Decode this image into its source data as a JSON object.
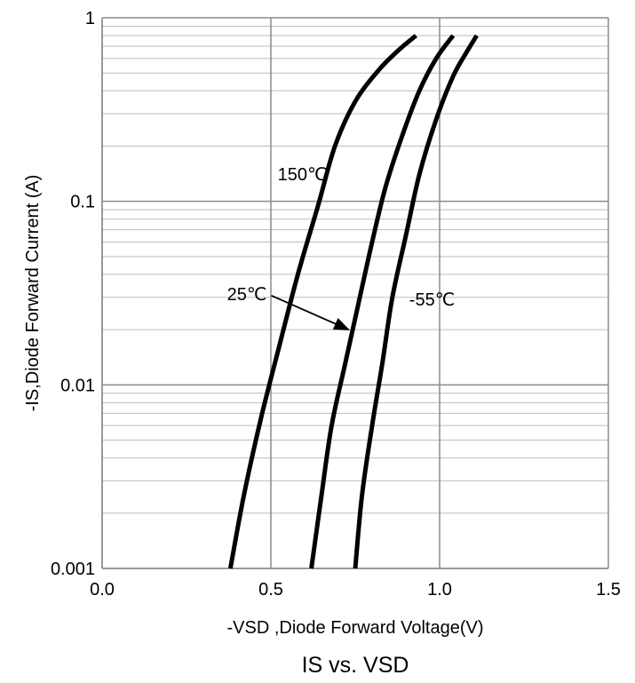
{
  "chart_data": {
    "type": "line",
    "caption": "IS vs. VSD",
    "xlabel": "-VSD ,Diode Forward Voltage(V)",
    "ylabel": "-IS,Diode Forward Current (A)",
    "x_scale": "linear",
    "y_scale": "log",
    "xlim": [
      0.0,
      1.5
    ],
    "ylim": [
      0.001,
      1
    ],
    "x_ticks": [
      "0.0",
      "0.5",
      "1.0",
      "1.5"
    ],
    "x_tick_values": [
      0.0,
      0.5,
      1.0,
      1.5
    ],
    "y_ticks": [
      "0.001",
      "0.01",
      "0.1",
      "1"
    ],
    "y_tick_values": [
      0.001,
      0.01,
      0.1,
      1
    ],
    "grid": true,
    "minor_grid_y": true,
    "series": [
      {
        "name": "150℃",
        "color": "#000000",
        "points": [
          [
            0.38,
            0.001
          ],
          [
            0.42,
            0.0025
          ],
          [
            0.47,
            0.0065
          ],
          [
            0.52,
            0.015
          ],
          [
            0.58,
            0.04
          ],
          [
            0.64,
            0.095
          ],
          [
            0.69,
            0.2
          ],
          [
            0.75,
            0.35
          ],
          [
            0.82,
            0.52
          ],
          [
            0.88,
            0.67
          ],
          [
            0.93,
            0.8
          ]
        ]
      },
      {
        "name": "25℃",
        "color": "#000000",
        "points": [
          [
            0.62,
            0.001
          ],
          [
            0.65,
            0.0025
          ],
          [
            0.68,
            0.006
          ],
          [
            0.72,
            0.013
          ],
          [
            0.76,
            0.028
          ],
          [
            0.8,
            0.06
          ],
          [
            0.84,
            0.12
          ],
          [
            0.89,
            0.23
          ],
          [
            0.94,
            0.4
          ],
          [
            0.99,
            0.6
          ],
          [
            1.04,
            0.8
          ]
        ]
      },
      {
        "name": "-55℃",
        "color": "#000000",
        "points": [
          [
            0.75,
            0.001
          ],
          [
            0.77,
            0.0025
          ],
          [
            0.8,
            0.006
          ],
          [
            0.83,
            0.013
          ],
          [
            0.86,
            0.03
          ],
          [
            0.9,
            0.065
          ],
          [
            0.94,
            0.14
          ],
          [
            0.99,
            0.28
          ],
          [
            1.04,
            0.48
          ],
          [
            1.08,
            0.65
          ],
          [
            1.11,
            0.8
          ]
        ]
      }
    ],
    "annotations": [
      {
        "text": "150℃",
        "x": 0.52,
        "y": 0.13
      },
      {
        "text": "25℃",
        "x": 0.37,
        "y": 0.029,
        "arrow_to": [
          0.73,
          0.02
        ]
      },
      {
        "text": "-55℃",
        "x": 0.91,
        "y": 0.027
      }
    ]
  }
}
